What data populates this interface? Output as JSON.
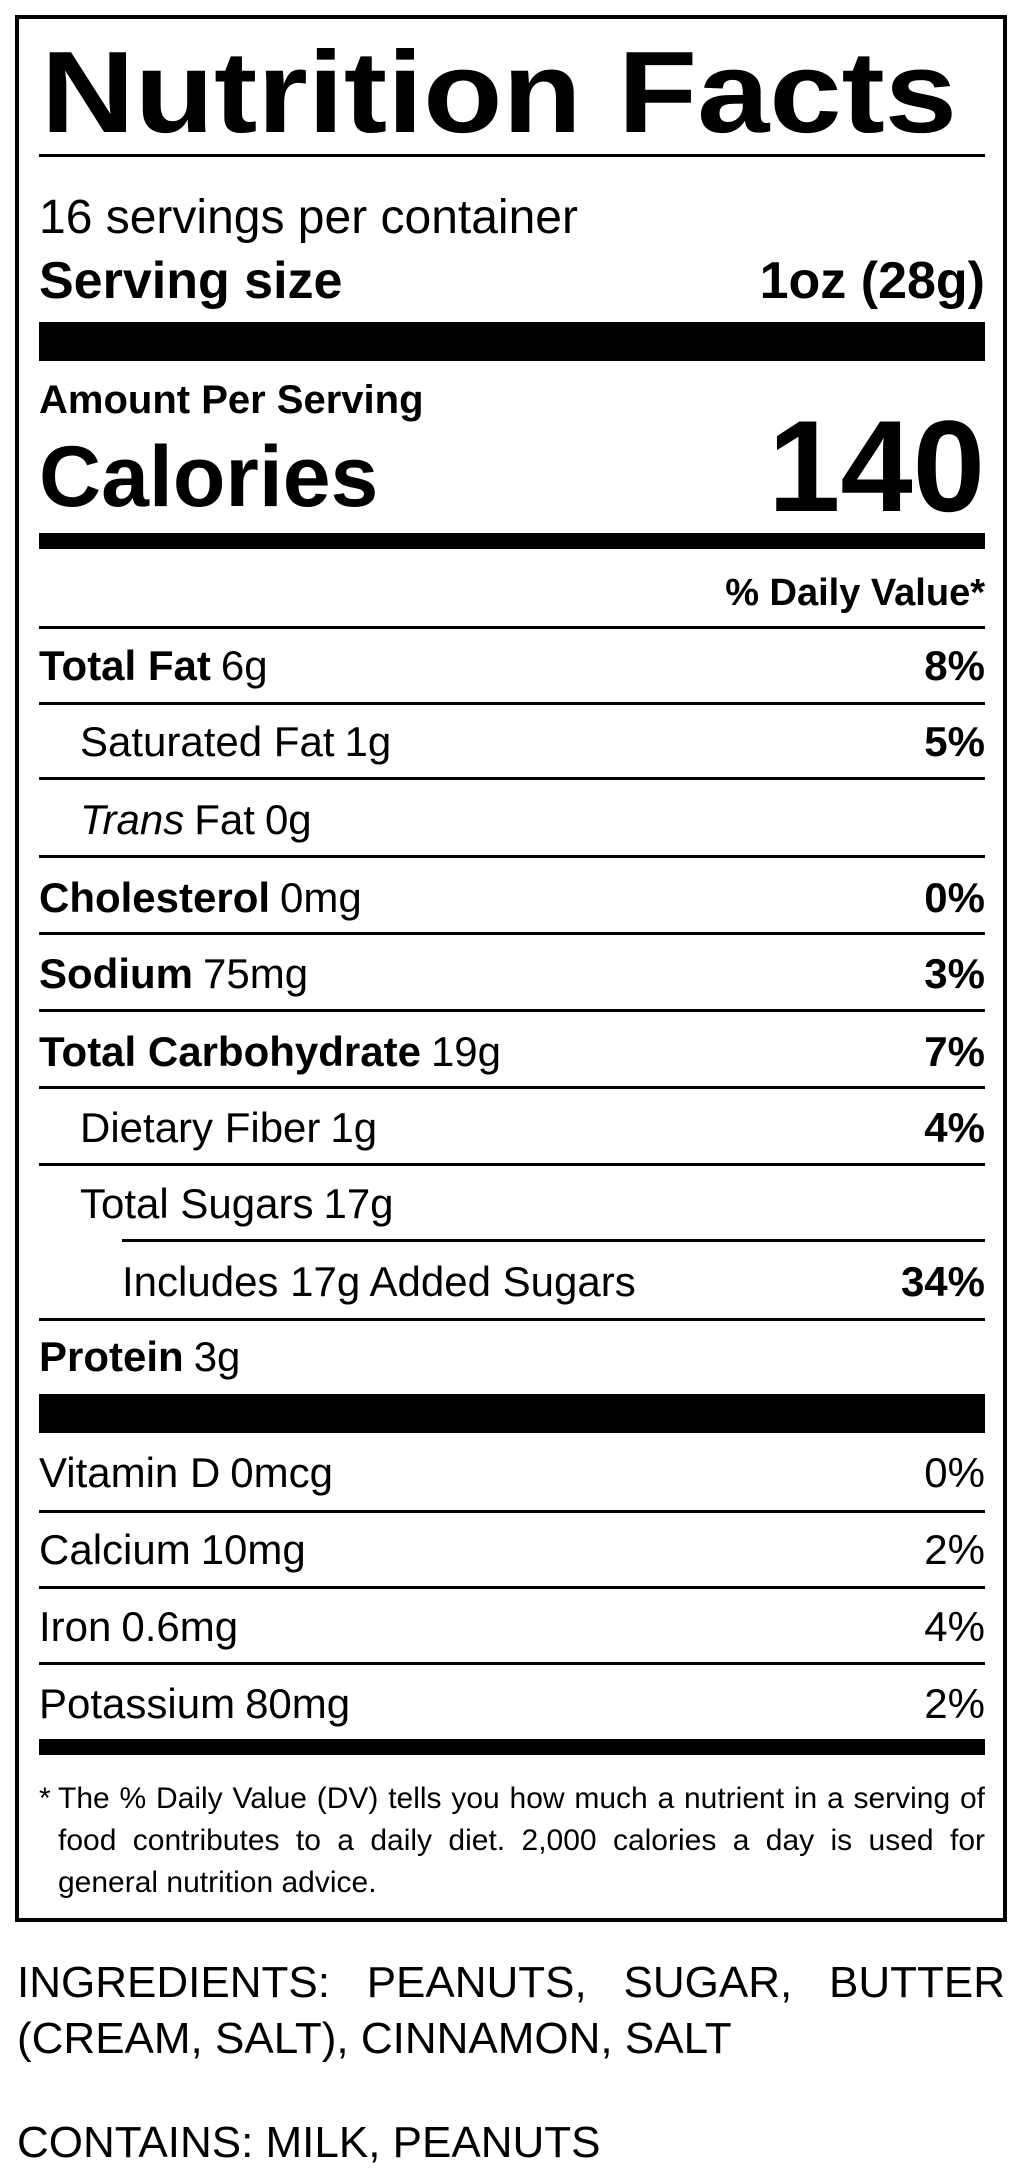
{
  "header": {
    "title": "Nutrition Facts",
    "servings": "16 servings per container",
    "serving_size_label": "Serving size",
    "serving_size": "1oz (28g)"
  },
  "calories": {
    "amount_label": "Amount Per Serving",
    "label": "Calories",
    "value": 140
  },
  "daily_value_header": "% Daily Value*",
  "nutrients": [
    {
      "name": "Total Fat",
      "amount": "6g",
      "dv": "8%",
      "bold": true,
      "indent": 0
    },
    {
      "name": "Saturated Fat",
      "amount": "1g",
      "dv": "5%",
      "bold": false,
      "indent": 1
    },
    {
      "name_italic": "Trans",
      "name": "Fat",
      "amount": "0g",
      "bold": false,
      "indent": 1
    },
    {
      "name": "Cholesterol",
      "amount": "0mg",
      "dv": "0%",
      "bold": true,
      "indent": 0
    },
    {
      "name": "Sodium",
      "amount": "75mg",
      "dv": "3%",
      "bold": true,
      "indent": 0
    },
    {
      "name": "Total Carbohydrate",
      "amount": "19g",
      "dv": "7%",
      "bold": true,
      "indent": 0
    },
    {
      "name": "Dietary Fiber",
      "amount": "1g",
      "dv": "4%",
      "bold": false,
      "indent": 1
    },
    {
      "name": "Total Sugars",
      "amount": "17g",
      "bold": false,
      "indent": 1
    },
    {
      "name": "Includes 17g Added Sugars",
      "dv": "34%",
      "bold": false,
      "indent": 2
    },
    {
      "name": "Protein",
      "amount": "3g",
      "bold": true,
      "indent": 0
    }
  ],
  "vitamins": [
    {
      "name": "Vitamin D",
      "amount": "0mcg",
      "dv": "0%"
    },
    {
      "name": "Calcium",
      "amount": "10mg",
      "dv": "2%"
    },
    {
      "name": "Iron",
      "amount": "0.6mg",
      "dv": "4%"
    },
    {
      "name": "Potassium",
      "amount": "80mg",
      "dv": "2%"
    }
  ],
  "footnote": {
    "marker": "*",
    "text": "The % Daily Value (DV) tells you how much a nutrient in a serving of food contributes to a daily diet. 2,000 calories a day is used for general nutrition advice."
  },
  "ingredients": "INGREDIENTS: PEANUTS, SUGAR, BUTTER (CREAM, SALT), CINNAMON, SALT",
  "contains": "CONTAINS: MILK, PEANUTS"
}
